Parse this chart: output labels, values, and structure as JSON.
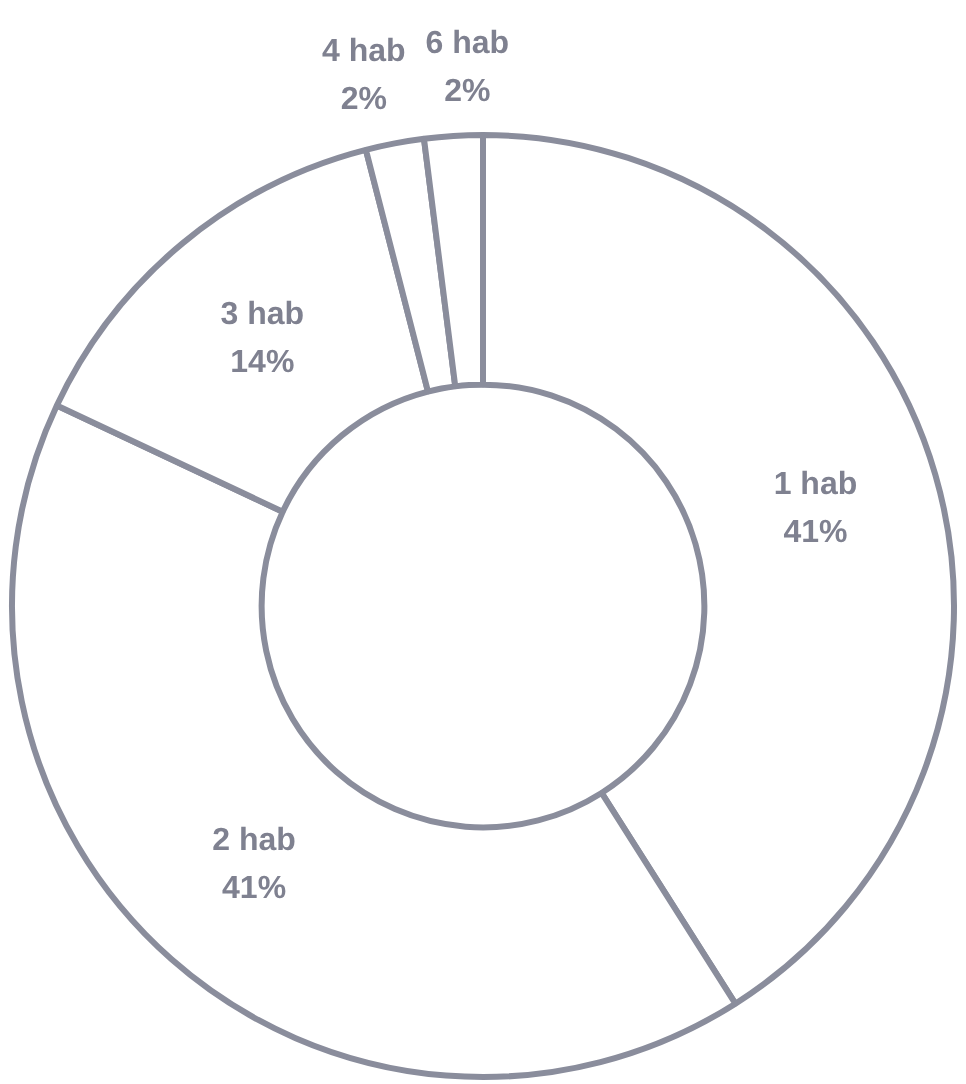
{
  "chart_data": {
    "type": "donut",
    "categories": [
      "1 hab",
      "2 hab",
      "3 hab",
      "4 hab",
      "6 hab"
    ],
    "values": [
      41,
      41,
      14,
      2,
      2
    ],
    "colors": [
      "#ffffff",
      "#ffffff",
      "#ffffff",
      "#ffffff",
      "#ffffff"
    ],
    "value_labels": [
      "41%",
      "41%",
      "14%",
      "2%",
      "2%"
    ],
    "legend": false
  }
}
